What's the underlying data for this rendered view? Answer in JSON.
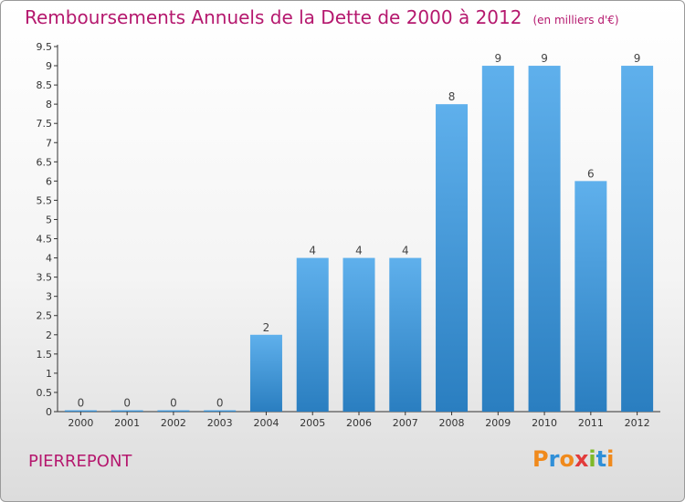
{
  "header": {
    "title": "Remboursements Annuels de la Dette de 2000 à 2012",
    "unit": "(en milliers d'€)"
  },
  "footer": {
    "commune": "PIERREPONT",
    "logo_text": "Proxiti",
    "logo_colors": [
      "#f08a1c",
      "#2f8fd8",
      "#f08a1c",
      "#e23b3b",
      "#7fb928",
      "#2f8fd8",
      "#f08a1c"
    ]
  },
  "chart_data": {
    "type": "bar",
    "categories": [
      "2000",
      "2001",
      "2002",
      "2003",
      "2004",
      "2005",
      "2006",
      "2007",
      "2008",
      "2009",
      "2010",
      "2011",
      "2012"
    ],
    "values": [
      0,
      0,
      0,
      0,
      2,
      4,
      4,
      4,
      8,
      9,
      9,
      6,
      9
    ],
    "value_labels": [
      "0",
      "0",
      "0",
      "0",
      "2",
      "4",
      "4",
      "4",
      "8",
      "9",
      "9",
      "6",
      "9"
    ],
    "ylim": [
      0,
      9.5
    ],
    "yticks": [
      0,
      0.5,
      1,
      1.5,
      2,
      2.5,
      3,
      3.5,
      4,
      4.5,
      5,
      5.5,
      6,
      6.5,
      7,
      7.5,
      8,
      8.5,
      9,
      9.5
    ],
    "ytick_labels": [
      "0",
      "0.5",
      "1",
      "1.5",
      "2",
      "2.5",
      "3",
      "3.5",
      "4",
      "4.5",
      "5",
      "5.5",
      "6",
      "6.5",
      "7",
      "7.5",
      "8",
      "8.5",
      "9",
      "9.5"
    ],
    "grid": false,
    "bar_color_top": "#5fb0ec",
    "bar_color_bottom": "#2a7ec0",
    "axis_color": "#333333"
  }
}
